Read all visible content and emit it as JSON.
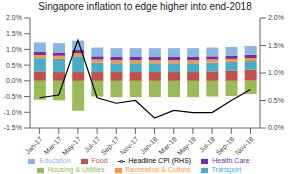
{
  "chart_data": {
    "type": "bar",
    "title": "Singapore inflation to edge higher into end-2018",
    "categories": [
      "Jan-17",
      "Mar-17",
      "May-17",
      "Jul-17",
      "Sep-17",
      "Nov-17",
      "Jan-18",
      "Mar-18",
      "May-18",
      "Jul-18",
      "Sep-18",
      "Nov-18"
    ],
    "series": [
      {
        "name": "Food",
        "color": "#c0504d",
        "values": [
          0.3,
          0.28,
          0.28,
          0.28,
          0.28,
          0.28,
          0.28,
          0.28,
          0.28,
          0.3,
          0.32,
          0.35
        ]
      },
      {
        "name": "Transport",
        "color": "#4bacc6",
        "values": [
          0.42,
          0.42,
          0.5,
          0.3,
          0.28,
          0.28,
          0.28,
          0.28,
          0.28,
          0.28,
          0.28,
          0.28
        ]
      },
      {
        "name": "Recreation & Culture",
        "color": "#f79646",
        "values": [
          0.1,
          0.1,
          0.1,
          0.1,
          0.1,
          0.1,
          0.1,
          0.1,
          0.1,
          0.1,
          0.1,
          0.1
        ]
      },
      {
        "name": "Health Care",
        "color": "#7030a0",
        "values": [
          0.1,
          0.1,
          0.1,
          0.1,
          0.1,
          0.1,
          0.1,
          0.1,
          0.1,
          0.1,
          0.1,
          0.1
        ]
      },
      {
        "name": "Education",
        "color": "#8db4e2",
        "values": [
          0.3,
          0.3,
          0.3,
          0.28,
          0.28,
          0.28,
          0.28,
          0.28,
          0.28,
          0.28,
          0.28,
          0.28
        ]
      },
      {
        "name": "Housing & Utilities",
        "color": "#9bbb59",
        "values": [
          -0.6,
          -0.62,
          -0.95,
          -0.5,
          -0.52,
          -0.52,
          -0.52,
          -0.52,
          -0.52,
          -0.5,
          -0.48,
          -0.42
        ]
      },
      {
        "name": "Headline CPI (RHS)",
        "type": "line",
        "axis": "y2",
        "color": "#000000",
        "values": [
          0.55,
          0.6,
          1.6,
          0.55,
          0.45,
          0.5,
          0.18,
          0.32,
          0.28,
          0.28,
          0.5,
          0.7
        ]
      }
    ],
    "ylim": [
      -1.5,
      2.0
    ],
    "yticks": [
      {
        "value": -1.5,
        "label": "-1.5%"
      },
      {
        "value": -1.0,
        "label": "-1.0%"
      },
      {
        "value": -0.5,
        "label": "-0.5%"
      },
      {
        "value": 0.0,
        "label": "0.0%"
      },
      {
        "value": 0.5,
        "label": "0.5%"
      },
      {
        "value": 1.0,
        "label": "1.0%"
      },
      {
        "value": 1.5,
        "label": "1.5%"
      },
      {
        "value": 2.0,
        "label": "2.0%"
      }
    ],
    "y2lim": [
      0.0,
      2.0
    ],
    "y2ticks": [
      {
        "value": 0.0,
        "label": "0.0%"
      },
      {
        "value": 0.5,
        "label": "0.5%"
      },
      {
        "value": 1.0,
        "label": "1.0%"
      },
      {
        "value": 1.5,
        "label": "1.5%"
      },
      {
        "value": 2.0,
        "label": "2.0%"
      }
    ],
    "stacked": true,
    "grid": false,
    "legend": "bottom"
  }
}
